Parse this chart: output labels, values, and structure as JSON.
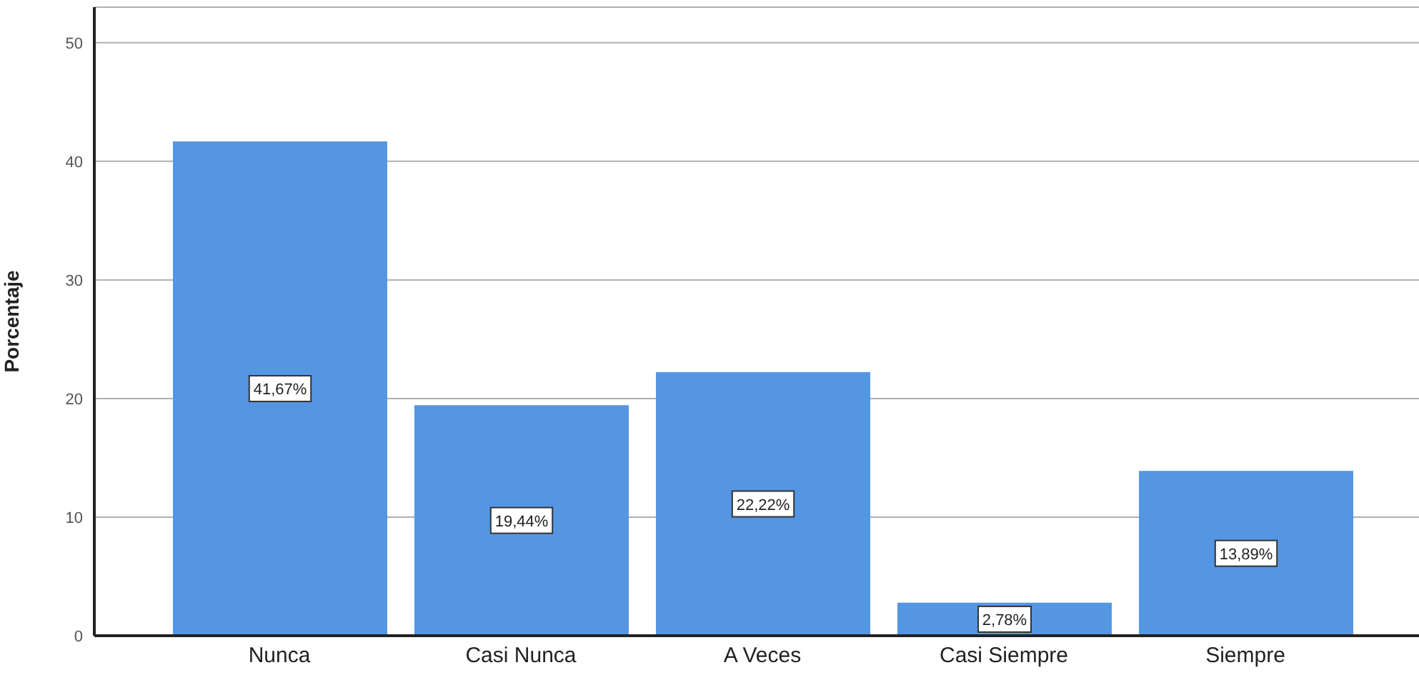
{
  "chart_data": {
    "type": "bar",
    "ylabel": "Porcentaje",
    "categories": [
      "Nunca",
      "Casi Nunca",
      "A Veces",
      "Casi Siempre",
      "Siempre"
    ],
    "values": [
      41.67,
      19.44,
      22.22,
      2.78,
      13.89
    ],
    "value_labels": [
      "41,67%",
      "19,44%",
      "22,22%",
      "2,78%",
      "13,89%"
    ],
    "color": "#5596e3",
    "ylim": [
      0,
      53
    ],
    "yticks": [
      0,
      10,
      20,
      30,
      40,
      50
    ],
    "grid": "y"
  }
}
